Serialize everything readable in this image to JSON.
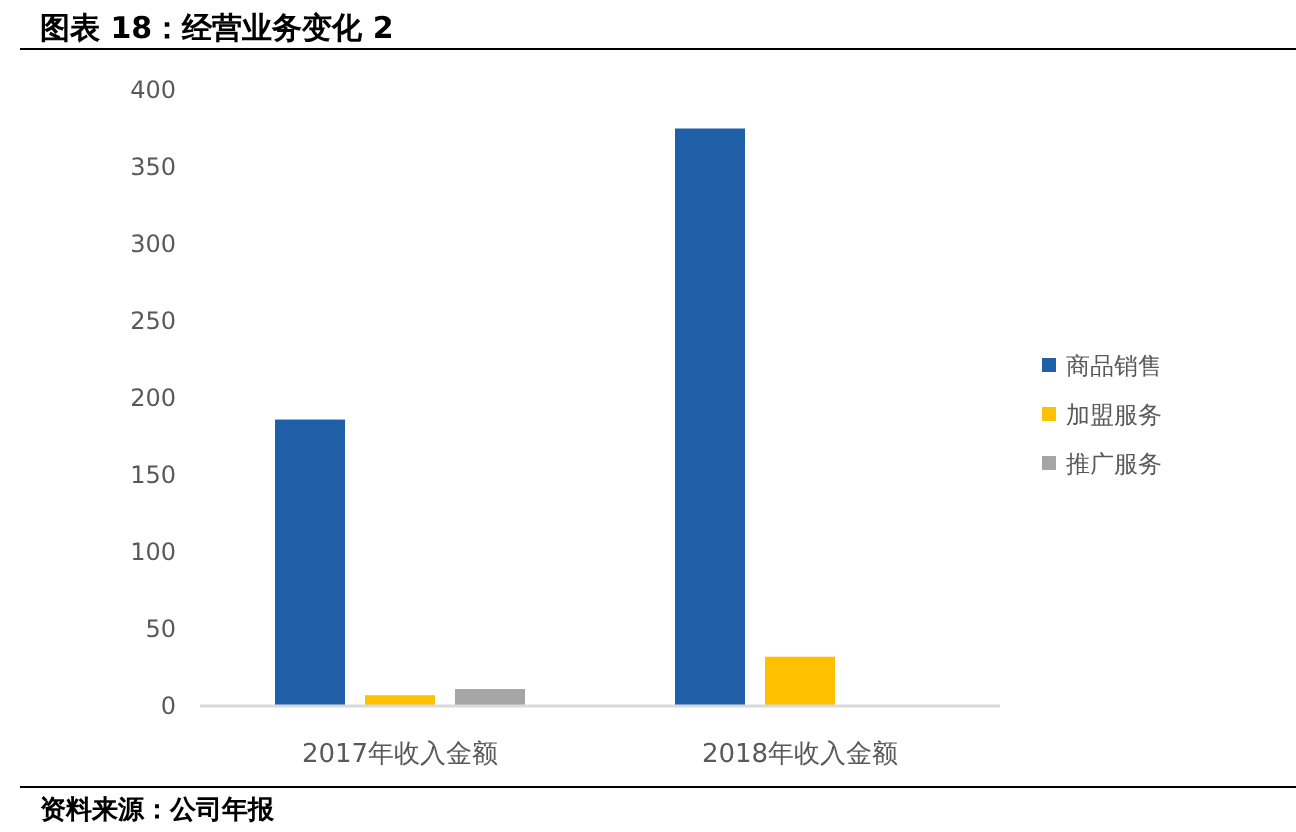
{
  "chart_data": {
    "type": "bar",
    "title": "图表 18：经营业务变化 2",
    "categories": [
      "2017年收入金额",
      "2018年收入金额"
    ],
    "series": [
      {
        "name": "商品销售",
        "color": "#1f5fa8",
        "values": [
          186,
          375
        ]
      },
      {
        "name": "加盟服务",
        "color": "#ffc000",
        "values": [
          7,
          32
        ]
      },
      {
        "name": "推广服务",
        "color": "#a5a5a5",
        "values": [
          11,
          null
        ]
      }
    ],
    "ylim": [
      0,
      400
    ],
    "yticks": [
      0,
      50,
      100,
      150,
      200,
      250,
      300,
      350,
      400
    ],
    "grid": false,
    "legend": "right",
    "annotations": [
      "资料来源：公司年报"
    ]
  }
}
